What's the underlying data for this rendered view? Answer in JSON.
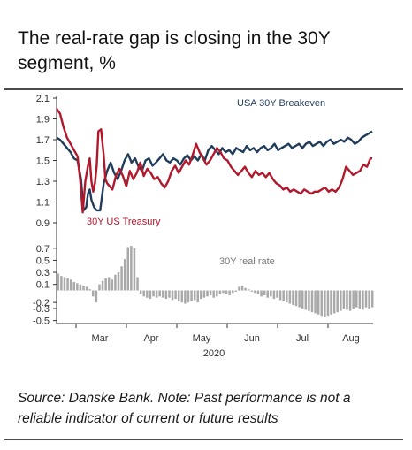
{
  "title": "The real-rate gap is closing in the 30Y segment, %",
  "source": "Source: Danske Bank. Note: Past performance is not a reliable indicator of current or future results",
  "colors": {
    "breakeven": "#1f3c5a",
    "treasury": "#b2182b",
    "real_rate": "#a9a9a9",
    "axis": "#333333"
  },
  "chart_data": [
    {
      "type": "line",
      "ylim": [
        0.9,
        2.1
      ],
      "yticks": [
        "2.1",
        "1.9",
        "1.7",
        "1.5",
        "1.3",
        "1.1",
        "0.9"
      ],
      "grid": false,
      "series": [
        {
          "name": "USA 30Y Breakeven",
          "x": [
            0,
            4,
            8,
            12,
            16,
            20,
            24,
            28,
            31,
            34,
            36,
            38,
            40,
            43,
            46,
            50,
            54,
            58,
            62,
            66,
            70,
            74,
            78,
            82,
            86,
            90,
            94,
            98,
            102,
            106,
            110,
            114,
            118,
            122,
            126,
            130,
            134,
            138,
            142,
            146,
            150,
            154,
            158,
            162,
            166,
            170,
            174,
            178,
            182,
            186,
            190,
            194,
            198,
            202,
            206,
            210,
            214,
            218,
            222,
            226,
            230,
            234,
            238,
            242,
            246,
            250,
            254,
            258,
            262,
            266,
            270,
            274,
            278,
            282,
            286,
            290,
            294,
            298,
            302,
            306,
            310,
            314,
            318,
            322,
            326,
            330,
            334,
            338,
            342,
            346,
            350,
            354,
            358,
            362
          ],
          "values": [
            1.72,
            1.7,
            1.66,
            1.62,
            1.58,
            1.52,
            1.5,
            1.32,
            1.02,
            1.05,
            1.18,
            1.22,
            1.12,
            1.05,
            1.02,
            1.02,
            1.28,
            1.4,
            1.48,
            1.38,
            1.32,
            1.4,
            1.5,
            1.56,
            1.48,
            1.52,
            1.44,
            1.4,
            1.5,
            1.52,
            1.45,
            1.48,
            1.52,
            1.56,
            1.5,
            1.48,
            1.52,
            1.5,
            1.46,
            1.52,
            1.55,
            1.5,
            1.54,
            1.5,
            1.56,
            1.5,
            1.6,
            1.64,
            1.6,
            1.56,
            1.62,
            1.58,
            1.6,
            1.56,
            1.62,
            1.6,
            1.58,
            1.64,
            1.6,
            1.62,
            1.58,
            1.62,
            1.64,
            1.6,
            1.62,
            1.66,
            1.6,
            1.62,
            1.64,
            1.66,
            1.62,
            1.64,
            1.66,
            1.62,
            1.66,
            1.68,
            1.64,
            1.66,
            1.68,
            1.64,
            1.68,
            1.7,
            1.66,
            1.68,
            1.7,
            1.68,
            1.72,
            1.7,
            1.66,
            1.68,
            1.72,
            1.74,
            1.76,
            1.78
          ]
        },
        {
          "name": "30Y US Treasury",
          "x": [
            0,
            4,
            8,
            12,
            16,
            20,
            24,
            27,
            30,
            33,
            36,
            38,
            40,
            42,
            44,
            46,
            48,
            51,
            54,
            56,
            58,
            60,
            64,
            68,
            72,
            76,
            80,
            84,
            88,
            92,
            96,
            100,
            104,
            108,
            112,
            116,
            120,
            124,
            128,
            132,
            136,
            140,
            144,
            148,
            152,
            156,
            160,
            164,
            168,
            172,
            176,
            180,
            184,
            188,
            192,
            196,
            200,
            204,
            208,
            212,
            216,
            220,
            224,
            228,
            232,
            236,
            240,
            244,
            248,
            252,
            256,
            260,
            264,
            268,
            272,
            276,
            280,
            284,
            288,
            292,
            296,
            300,
            304,
            308,
            312,
            316,
            320,
            324,
            328,
            332,
            336,
            340,
            344,
            348,
            352,
            356,
            360,
            362
          ],
          "values": [
            2.0,
            1.95,
            1.82,
            1.72,
            1.66,
            1.6,
            1.54,
            1.32,
            1.0,
            1.3,
            1.45,
            1.52,
            1.3,
            1.2,
            1.28,
            1.45,
            1.78,
            1.8,
            1.55,
            1.32,
            1.28,
            1.26,
            1.22,
            1.35,
            1.42,
            1.35,
            1.25,
            1.4,
            1.32,
            1.38,
            1.48,
            1.35,
            1.42,
            1.38,
            1.32,
            1.34,
            1.28,
            1.24,
            1.3,
            1.4,
            1.45,
            1.38,
            1.44,
            1.5,
            1.46,
            1.55,
            1.66,
            1.58,
            1.52,
            1.46,
            1.5,
            1.56,
            1.62,
            1.58,
            1.52,
            1.5,
            1.44,
            1.4,
            1.36,
            1.4,
            1.44,
            1.38,
            1.34,
            1.4,
            1.36,
            1.38,
            1.34,
            1.38,
            1.32,
            1.28,
            1.26,
            1.22,
            1.24,
            1.2,
            1.22,
            1.2,
            1.18,
            1.22,
            1.2,
            1.18,
            1.2,
            1.2,
            1.22,
            1.24,
            1.2,
            1.22,
            1.2,
            1.24,
            1.32,
            1.44,
            1.4,
            1.36,
            1.38,
            1.4,
            1.46,
            1.44,
            1.52,
            1.52
          ]
        }
      ]
    },
    {
      "type": "bar",
      "ylim": [
        -0.55,
        0.8
      ],
      "yticks": [
        "0.7",
        "0.5",
        "0.3",
        "0.1",
        "-0.2",
        "-0.3",
        "-0.5"
      ],
      "x_tick_labels": [
        "Mar",
        "Apr",
        "May",
        "Jun",
        "Jul",
        "Aug"
      ],
      "x_year": "2020",
      "series": [
        {
          "name": "30Y real rate",
          "values": [
            0.28,
            0.24,
            0.22,
            0.2,
            0.18,
            0.14,
            0.12,
            0.1,
            0.08,
            0.06,
            0.02,
            -0.1,
            -0.2,
            0.1,
            0.16,
            0.2,
            0.22,
            0.18,
            0.26,
            0.3,
            0.4,
            0.52,
            0.72,
            0.74,
            0.7,
            0.22,
            -0.05,
            -0.1,
            -0.12,
            -0.14,
            -0.1,
            -0.12,
            -0.1,
            -0.12,
            -0.14,
            -0.12,
            -0.16,
            -0.14,
            -0.18,
            -0.2,
            -0.22,
            -0.2,
            -0.18,
            -0.16,
            -0.2,
            -0.14,
            -0.12,
            -0.1,
            -0.08,
            -0.12,
            -0.1,
            -0.06,
            -0.04,
            -0.06,
            -0.08,
            -0.04,
            -0.02,
            0.06,
            0.08,
            0.04,
            0.02,
            -0.02,
            -0.04,
            -0.06,
            -0.1,
            -0.08,
            -0.12,
            -0.1,
            -0.14,
            -0.12,
            -0.16,
            -0.18,
            -0.2,
            -0.22,
            -0.24,
            -0.26,
            -0.28,
            -0.3,
            -0.32,
            -0.34,
            -0.36,
            -0.38,
            -0.4,
            -0.42,
            -0.44,
            -0.42,
            -0.4,
            -0.38,
            -0.36,
            -0.34,
            -0.3,
            -0.32,
            -0.34,
            -0.3,
            -0.28,
            -0.3,
            -0.32,
            -0.28,
            -0.3,
            -0.28
          ]
        }
      ]
    }
  ]
}
